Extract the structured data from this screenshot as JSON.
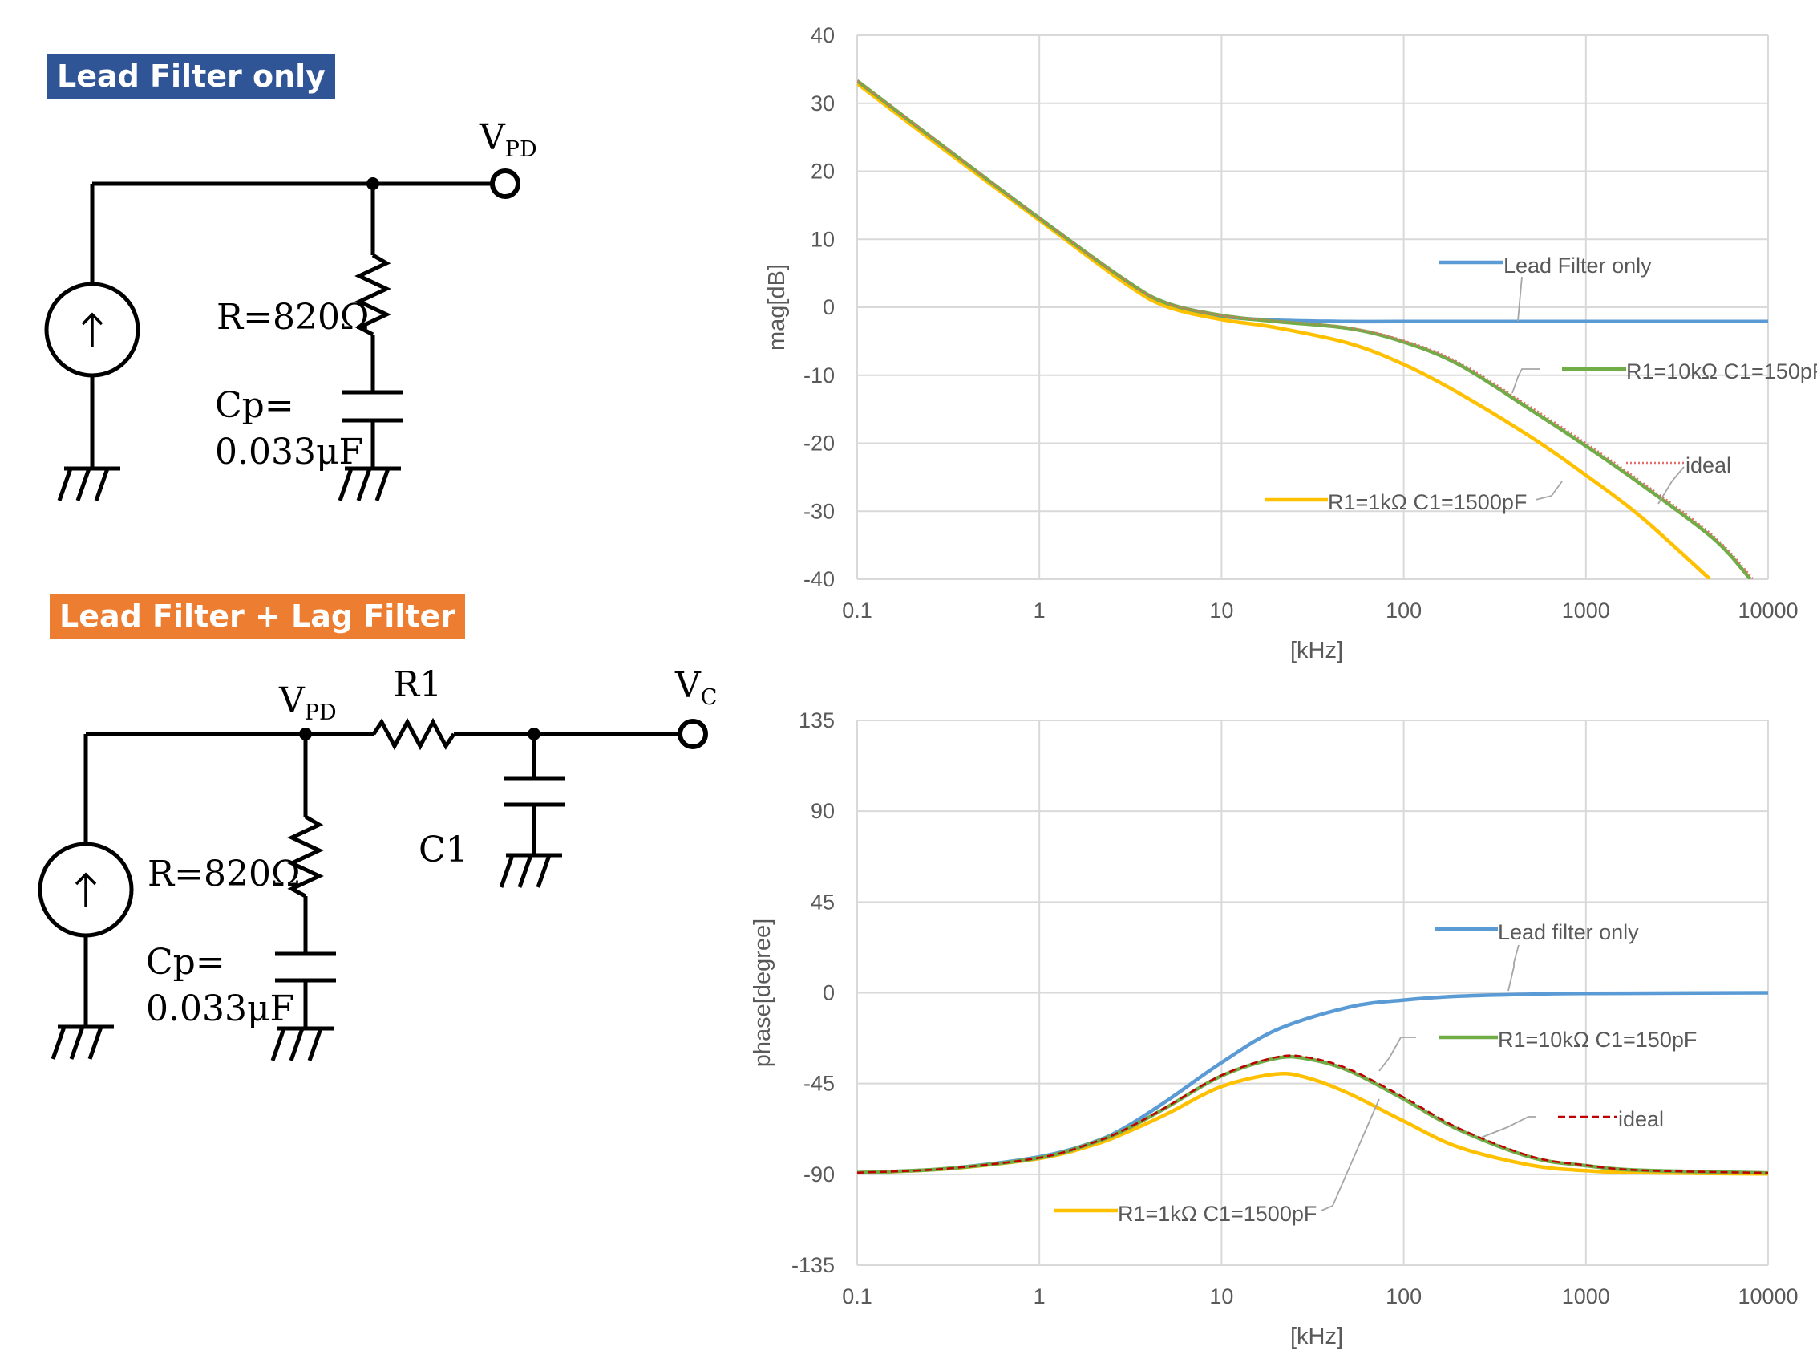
{
  "schematics": {
    "lead": {
      "badge": "Lead Filter only",
      "color": "#2f5597",
      "vpd_main": "V",
      "vpd_sub": "PD",
      "r_label": "R=820Ω",
      "cp_label_1": "Cp=",
      "cp_label_2": "0.033μF"
    },
    "leadlag": {
      "badge": "Lead Filter + Lag Filter",
      "color": "#ed7d31",
      "vpd_main": "V",
      "vpd_sub": "PD",
      "r1_label": "R1",
      "c1_label": "C1",
      "vc_main": "V",
      "vc_sub": "C",
      "r_label": "R=820Ω",
      "cp_label_1": "Cp=",
      "cp_label_2": "0.033μF"
    }
  },
  "chart_data": [
    {
      "type": "line",
      "xscale": "log",
      "xlim": [
        0.1,
        10000
      ],
      "ylim": [
        -40,
        40
      ],
      "xticks": [
        "0.1",
        "1",
        "10",
        "100",
        "1000",
        "10000"
      ],
      "yticks": [
        "40",
        "30",
        "20",
        "10",
        "0",
        "-10",
        "-20",
        "-30",
        "-40"
      ],
      "xlabel": "[kHz]",
      "ylabel": "mag[dB]",
      "grid": true,
      "legend": "in-plot callout labels",
      "series": [
        {
          "name": "Lead Filter only",
          "color": "#5b9bd5",
          "style": "solid",
          "x": [
            0.1,
            0.3,
            1,
            3,
            5,
            10,
            20,
            50,
            100,
            1000,
            10000
          ],
          "y": [
            33,
            23.5,
            13.1,
            3.8,
            0.6,
            -1.3,
            -1.9,
            -2.1,
            -2.1,
            -2.1,
            -2.1
          ]
        },
        {
          "name": "R1=10kΩ C1=150pF",
          "color": "#70ad47",
          "style": "solid",
          "x": [
            0.1,
            0.3,
            1,
            3,
            5,
            10,
            20,
            50,
            100,
            200,
            500,
            1000,
            2000,
            5000,
            8000
          ],
          "y": [
            33.3,
            23.6,
            13.1,
            3.9,
            0.6,
            -1.2,
            -2.1,
            -3.1,
            -5.1,
            -8.4,
            -15.1,
            -20.4,
            -26,
            -34,
            -40
          ]
        },
        {
          "name": "R1=1kΩ C1=1500pF",
          "color": "#ffc000",
          "style": "solid",
          "x": [
            0.1,
            0.3,
            1,
            3,
            5,
            10,
            20,
            50,
            100,
            200,
            500,
            1000,
            2000,
            4800
          ],
          "y": [
            32.9,
            23.2,
            12.8,
            3.4,
            0.1,
            -1.8,
            -3.0,
            -5.3,
            -8.4,
            -12.6,
            -19.1,
            -24.7,
            -30.8,
            -40
          ]
        },
        {
          "name": "ideal",
          "color": "#e46c6c",
          "style": "dotted",
          "x": [
            0.1,
            0.3,
            1,
            3,
            5,
            10,
            20,
            50,
            100,
            200,
            500,
            1000,
            2000,
            5000,
            8300
          ],
          "y": [
            33.3,
            23.6,
            13.1,
            3.9,
            0.6,
            -1.2,
            -2.0,
            -3.0,
            -4.9,
            -8.1,
            -14.7,
            -20.0,
            -25.6,
            -33.6,
            -40
          ]
        }
      ],
      "annotations": [
        "Lead Filter only",
        "R1=10kΩ C1=150pF",
        "ideal",
        "R1=1kΩ C1=1500pF"
      ]
    },
    {
      "type": "line",
      "xscale": "log",
      "xlim": [
        0.1,
        10000
      ],
      "ylim": [
        -135,
        135
      ],
      "xticks": [
        "0.1",
        "1",
        "10",
        "100",
        "1000",
        "10000"
      ],
      "yticks": [
        "135",
        "90",
        "45",
        "0",
        "-45",
        "-90",
        "-135"
      ],
      "xlabel": "[kHz]",
      "ylabel": "phase[degree]",
      "grid": true,
      "legend": "in-plot callout labels",
      "series": [
        {
          "name": "Lead filter only",
          "color": "#5b9bd5",
          "style": "solid",
          "x": [
            0.1,
            0.3,
            1,
            2,
            3,
            5,
            10,
            20,
            50,
            100,
            200,
            500,
            1000,
            10000
          ],
          "y": [
            -89.1,
            -87.3,
            -81.3,
            -73.9,
            -66.4,
            -53.6,
            -34.6,
            -18.4,
            -7.1,
            -3.6,
            -1.7,
            -0.7,
            -0.3,
            0
          ]
        },
        {
          "name": "R1=10kΩ C1=150pF",
          "color": "#70ad47",
          "style": "solid",
          "x": [
            0.1,
            0.3,
            1,
            2,
            3,
            5,
            10,
            20,
            30,
            50,
            100,
            200,
            500,
            1000,
            2000,
            10000
          ],
          "y": [
            -89.2,
            -87.3,
            -81.8,
            -74.2,
            -67.6,
            -56.8,
            -41.2,
            -32.4,
            -32.8,
            -38.6,
            -52.7,
            -67.8,
            -81.5,
            -85.7,
            -88,
            -89.3
          ]
        },
        {
          "name": "R1=1kΩ C1=1500pF",
          "color": "#ffc000",
          "style": "solid",
          "x": [
            0.1,
            0.3,
            1,
            2,
            3,
            5,
            10,
            20,
            30,
            50,
            100,
            200,
            500,
            1000,
            2000,
            10000
          ],
          "y": [
            -89.2,
            -87.4,
            -82.1,
            -75.3,
            -69.2,
            -60.1,
            -46.5,
            -40.3,
            -42.3,
            -49.9,
            -63.6,
            -76.5,
            -85.5,
            -88.2,
            -89.2,
            -89.8
          ]
        },
        {
          "name": "ideal",
          "color": "#c00000",
          "style": "dashed",
          "x": [
            0.1,
            0.3,
            1,
            2,
            3,
            5,
            10,
            20,
            30,
            50,
            100,
            200,
            500,
            1000,
            2000,
            10000
          ],
          "y": [
            -89.2,
            -87.3,
            -81.8,
            -74.1,
            -67.4,
            -56.5,
            -40.9,
            -31.9,
            -32.1,
            -37.8,
            -51.8,
            -67.1,
            -81.1,
            -85.5,
            -88,
            -89.3
          ]
        }
      ],
      "annotations": [
        "Lead filter only",
        "R1=10kΩ C1=150pF",
        "ideal",
        "R1=1kΩ C1=1500pF"
      ]
    }
  ]
}
